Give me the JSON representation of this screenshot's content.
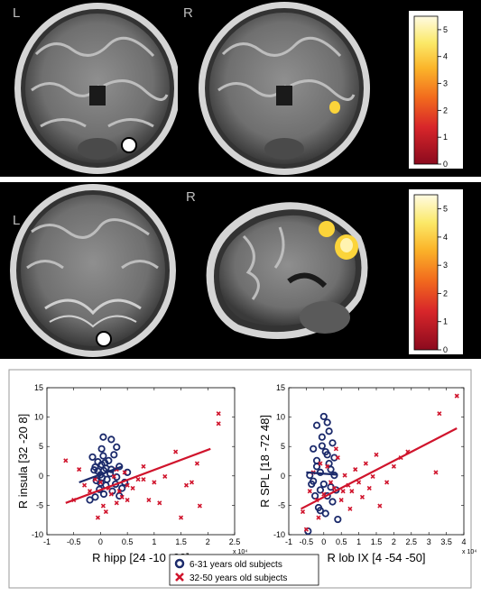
{
  "panels": {
    "top_left": {
      "orientation_label": "L"
    },
    "top_right": {
      "orientation_label": "R"
    },
    "bottom_left": {
      "orientation_label": "L"
    },
    "bottom_right": {
      "orientation_label": "R"
    }
  },
  "colorbars": [
    {
      "ticks": [
        "5",
        "4",
        "3",
        "2",
        "1",
        "0"
      ],
      "range": [
        0,
        5.5
      ],
      "colors": [
        "#8b0a1e",
        "#d8262a",
        "#f26b1d",
        "#fbb52a",
        "#fbe968",
        "#fffbe3"
      ]
    },
    {
      "ticks": [
        "5",
        "4",
        "3",
        "2",
        "1",
        "0"
      ],
      "range": [
        0,
        5.5
      ],
      "colors": [
        "#8b0a1e",
        "#d8262a",
        "#f26b1d",
        "#fbb52a",
        "#fbe968",
        "#fffbe3"
      ]
    }
  ],
  "legend": {
    "young_label": "6-31 years old subjects",
    "old_label": "32-50 years old subjects"
  },
  "colors": {
    "young": "#1b2a6b",
    "old": "#d0142c"
  },
  "chart_data": [
    {
      "type": "scatter",
      "xlabel": "R hipp [24 -10 -28]",
      "ylabel": "R insula [32 -20 8]",
      "xlim": [
        -1,
        2.5
      ],
      "ylim": [
        -10,
        15
      ],
      "xticks": [
        -1,
        -0.5,
        0,
        0.5,
        1,
        1.5,
        2,
        2.5
      ],
      "yticks": [
        -10,
        -5,
        0,
        5,
        10,
        15
      ],
      "x_multiplier": "x 10⁴",
      "series": [
        {
          "marker": "circle",
          "color": "#1b2a6b",
          "points": [
            [
              -0.15,
              3.2
            ],
            [
              -0.1,
              1.5
            ],
            [
              -0.05,
              0.8
            ],
            [
              0.02,
              1.9
            ],
            [
              0.05,
              3.4
            ],
            [
              0.0,
              0.2
            ],
            [
              -0.08,
              -0.8
            ],
            [
              0.1,
              -1.6
            ],
            [
              -0.02,
              -2.3
            ],
            [
              0.06,
              -3.1
            ],
            [
              0.15,
              2.6
            ],
            [
              0.2,
              1.1
            ],
            [
              0.25,
              3.6
            ],
            [
              0.3,
              -0.2
            ],
            [
              0.35,
              1.6
            ],
            [
              0.4,
              -2.1
            ],
            [
              0.05,
              6.6
            ],
            [
              0.2,
              6.2
            ],
            [
              0.3,
              4.9
            ],
            [
              -0.2,
              -4.1
            ],
            [
              -0.1,
              -3.6
            ],
            [
              0.12,
              -0.6
            ],
            [
              0.02,
              4.6
            ],
            [
              0.08,
              2.2
            ],
            [
              0.18,
              0.4
            ],
            [
              0.35,
              -3.4
            ],
            [
              0.45,
              -1.1
            ],
            [
              0.5,
              0.6
            ],
            [
              -0.05,
              2.4
            ],
            [
              0.0,
              -1.2
            ],
            [
              0.03,
              -0.3
            ],
            [
              0.06,
              0.9
            ],
            [
              0.1,
              1.3
            ],
            [
              -0.12,
              1.0
            ],
            [
              0.22,
              -2.6
            ],
            [
              0.28,
              -1.4
            ]
          ]
        },
        {
          "marker": "x",
          "color": "#d0142c",
          "points": [
            [
              -0.65,
              2.6
            ],
            [
              -0.5,
              -4.1
            ],
            [
              -0.4,
              1.1
            ],
            [
              -0.3,
              -1.6
            ],
            [
              -0.2,
              -2.6
            ],
            [
              -0.1,
              -0.6
            ],
            [
              0.0,
              -1.1
            ],
            [
              0.1,
              -6.1
            ],
            [
              0.15,
              -2.1
            ],
            [
              0.2,
              -3.1
            ],
            [
              0.25,
              -0.1
            ],
            [
              0.3,
              -4.6
            ],
            [
              0.35,
              -2.6
            ],
            [
              0.4,
              -3.6
            ],
            [
              0.45,
              0.6
            ],
            [
              0.5,
              -1.6
            ],
            [
              0.6,
              -2.1
            ],
            [
              0.7,
              -0.6
            ],
            [
              0.8,
              1.6
            ],
            [
              0.9,
              -4.1
            ],
            [
              1.0,
              -1.1
            ],
            [
              1.2,
              -0.1
            ],
            [
              1.4,
              4.1
            ],
            [
              1.5,
              -7.1
            ],
            [
              1.6,
              -1.6
            ],
            [
              1.7,
              -1.1
            ],
            [
              1.8,
              2.1
            ],
            [
              1.85,
              -5.1
            ],
            [
              2.2,
              10.6
            ],
            [
              2.2,
              8.9
            ],
            [
              -0.05,
              -7.1
            ],
            [
              0.05,
              -5.1
            ],
            [
              0.3,
              1.1
            ],
            [
              0.5,
              -4.1
            ],
            [
              0.8,
              -0.6
            ],
            [
              1.1,
              -4.6
            ]
          ]
        }
      ],
      "fits": [
        {
          "color": "#1b2a6b",
          "x": [
            -0.4,
            0.4
          ],
          "y": [
            -1.1,
            1.6
          ]
        },
        {
          "color": "#d0142c",
          "x": [
            -0.65,
            2.05
          ],
          "y": [
            -4.6,
            4.6
          ]
        }
      ]
    },
    {
      "type": "scatter",
      "xlabel": "R lob IX [4 -54 -50]",
      "ylabel": "R SPL [18 -72 48]",
      "xlim": [
        -1,
        4
      ],
      "ylim": [
        -10,
        15
      ],
      "xticks": [
        -1,
        -0.5,
        0,
        0.5,
        1,
        1.5,
        2,
        2.5,
        3,
        3.5,
        4
      ],
      "yticks": [
        -10,
        -5,
        0,
        5,
        10,
        15
      ],
      "x_multiplier": "x 10⁴",
      "series": [
        {
          "marker": "circle",
          "color": "#1b2a6b",
          "points": [
            [
              -0.3,
              4.6
            ],
            [
              -0.2,
              2.6
            ],
            [
              -0.1,
              0.6
            ],
            [
              0.0,
              -1.4
            ],
            [
              0.1,
              3.6
            ],
            [
              0.2,
              1.1
            ],
            [
              -0.25,
              -3.4
            ],
            [
              -0.15,
              -5.4
            ],
            [
              0.05,
              -6.4
            ],
            [
              0.25,
              -4.4
            ],
            [
              0.3,
              0.1
            ],
            [
              -0.05,
              6.6
            ],
            [
              0.15,
              7.6
            ],
            [
              -0.35,
              -1.4
            ],
            [
              0.35,
              -2.4
            ],
            [
              0.4,
              -7.4
            ],
            [
              -0.45,
              -9.4
            ],
            [
              0.0,
              10.1
            ],
            [
              -0.2,
              8.6
            ],
            [
              0.1,
              9.1
            ],
            [
              -0.1,
              -2.4
            ],
            [
              -0.3,
              -0.9
            ],
            [
              0.2,
              -1.9
            ],
            [
              0.05,
              4.1
            ],
            [
              -0.05,
              5.1
            ],
            [
              0.15,
              2.1
            ],
            [
              -0.2,
              1.6
            ],
            [
              0.3,
              3.1
            ],
            [
              0.1,
              -3.4
            ],
            [
              -0.1,
              -5.9
            ],
            [
              0.25,
              5.6
            ],
            [
              -0.4,
              0.1
            ]
          ]
        },
        {
          "marker": "x",
          "color": "#d0142c",
          "points": [
            [
              -0.6,
              -6.1
            ],
            [
              -0.5,
              -9.1
            ],
            [
              -0.4,
              -2.6
            ],
            [
              -0.3,
              0.6
            ],
            [
              -0.2,
              -4.1
            ],
            [
              -0.1,
              2.1
            ],
            [
              0.0,
              -3.1
            ],
            [
              0.1,
              1.6
            ],
            [
              0.2,
              -1.1
            ],
            [
              0.3,
              -2.1
            ],
            [
              0.4,
              3.1
            ],
            [
              0.5,
              -4.1
            ],
            [
              0.6,
              0.1
            ],
            [
              0.7,
              -1.6
            ],
            [
              0.8,
              -2.6
            ],
            [
              0.9,
              1.1
            ],
            [
              1.0,
              -1.1
            ],
            [
              1.1,
              -3.6
            ],
            [
              1.2,
              2.1
            ],
            [
              1.3,
              -2.1
            ],
            [
              1.5,
              3.6
            ],
            [
              1.6,
              -5.1
            ],
            [
              1.8,
              -1.1
            ],
            [
              2.0,
              1.6
            ],
            [
              2.2,
              3.1
            ],
            [
              2.4,
              4.1
            ],
            [
              3.2,
              0.6
            ],
            [
              3.3,
              10.6
            ],
            [
              3.8,
              13.6
            ],
            [
              -0.15,
              -7.1
            ],
            [
              0.35,
              4.6
            ],
            [
              0.75,
              -5.6
            ],
            [
              1.4,
              -0.1
            ],
            [
              0.55,
              -2.6
            ]
          ]
        }
      ],
      "fits": [
        {
          "color": "#1b2a6b",
          "x": [
            -0.5,
            0.4
          ],
          "y": [
            0.6,
            0.2
          ]
        },
        {
          "color": "#d0142c",
          "x": [
            -0.65,
            3.8
          ],
          "y": [
            -5.6,
            8.1
          ]
        }
      ]
    }
  ]
}
